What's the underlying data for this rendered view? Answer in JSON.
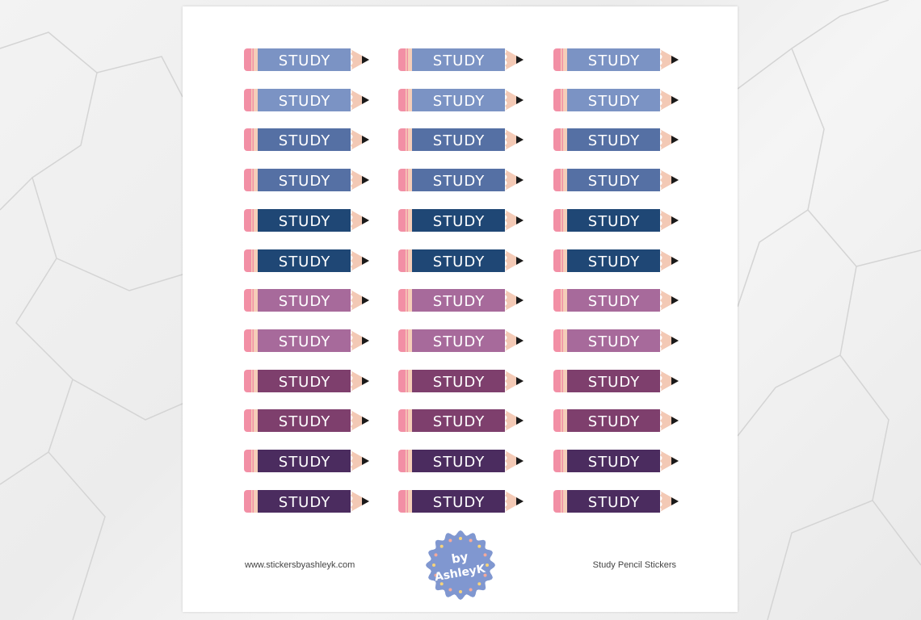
{
  "sheet": {
    "sticker_label": "STUDY",
    "columns": 3,
    "row_colors": [
      "#7b93c4",
      "#7b93c4",
      "#5570a4",
      "#5570a4",
      "#1f4775",
      "#1f4775",
      "#a76a9b",
      "#a76a9b",
      "#7e3f6d",
      "#7e3f6d",
      "#4b2c5f",
      "#4b2c5f"
    ],
    "pencil_colors": {
      "eraser": "#f28fa5",
      "band": "#f5cdb8",
      "tip": "#f3c9b5",
      "lead": "#1a1a1a",
      "text": "#ffffff"
    }
  },
  "footer": {
    "website": "www.stickersbyashleyk.com",
    "title": "Study Pencil Stickers",
    "logo_text_top": "by",
    "logo_text_bottom": "AshleyK",
    "logo_color": "#8097d0"
  }
}
